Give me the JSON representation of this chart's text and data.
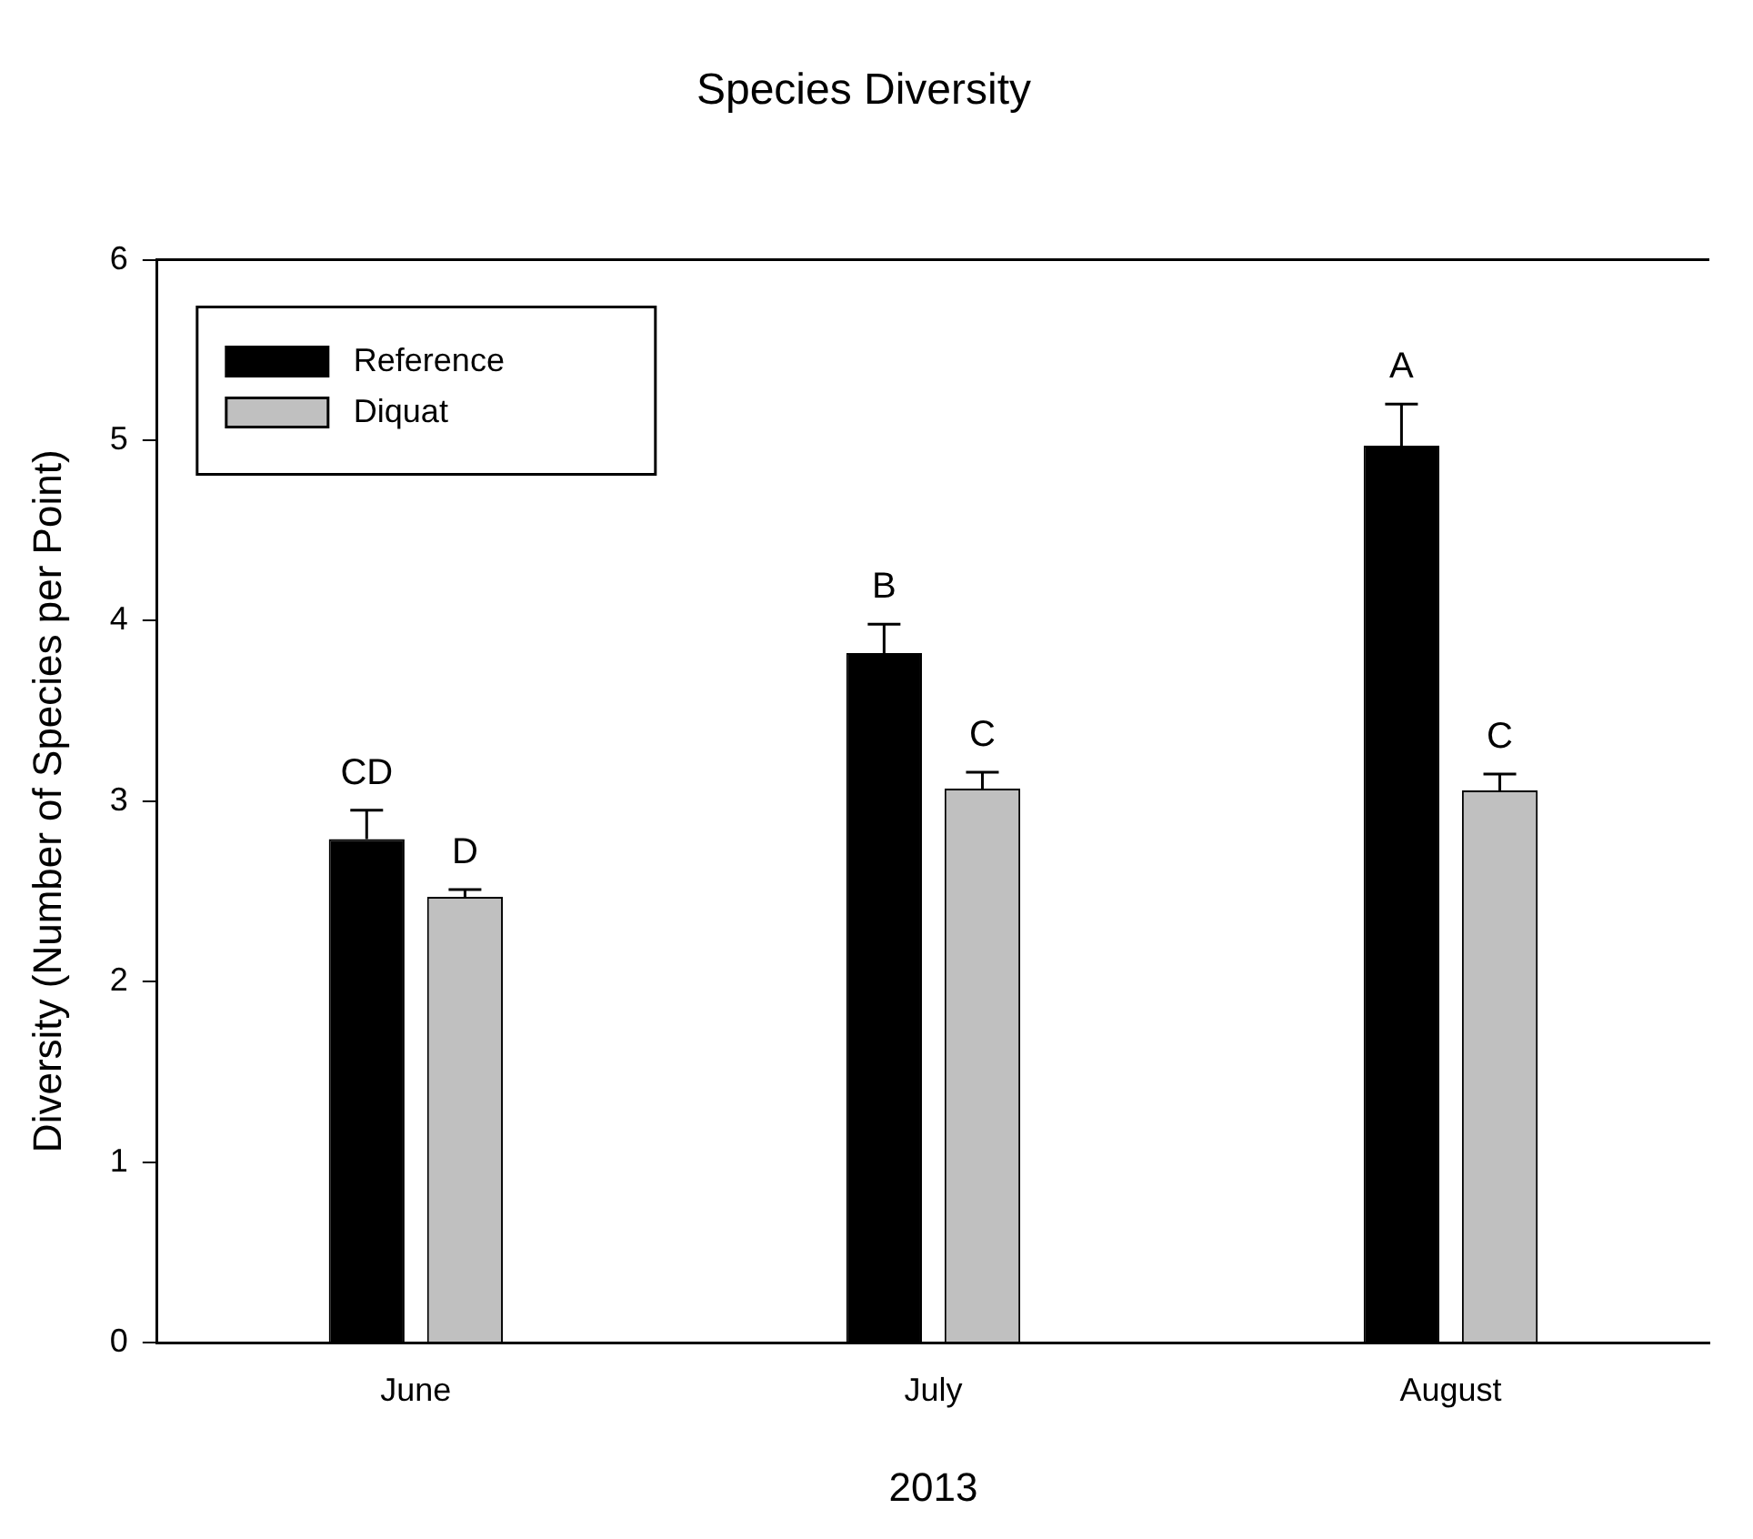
{
  "chart_data": {
    "type": "bar",
    "title": "Species Diversity",
    "xlabel": "2013",
    "ylabel": "Diversity (Number of Species per Point)",
    "categories": [
      "June",
      "July",
      "August"
    ],
    "series": [
      {
        "name": "Reference",
        "color": "#000000",
        "values": [
          2.79,
          3.82,
          4.97
        ],
        "errors": [
          [
            2.79,
            2.95
          ],
          [
            3.82,
            3.98
          ],
          [
            4.97,
            5.2
          ]
        ]
      },
      {
        "name": "Diquat",
        "color": "#c0c0c0",
        "values": [
          2.47,
          3.07,
          3.06
        ],
        "errors": [
          [
            2.47,
            2.51
          ],
          [
            3.07,
            3.16
          ],
          [
            3.06,
            3.15
          ]
        ]
      }
    ],
    "ylim": [
      0,
      6
    ],
    "yticks": [
      0,
      1,
      2,
      3,
      4,
      5,
      6
    ],
    "grid": false,
    "legend": "top left",
    "annotations": [
      "CD",
      "D",
      "B",
      "C",
      "A",
      "C"
    ]
  }
}
